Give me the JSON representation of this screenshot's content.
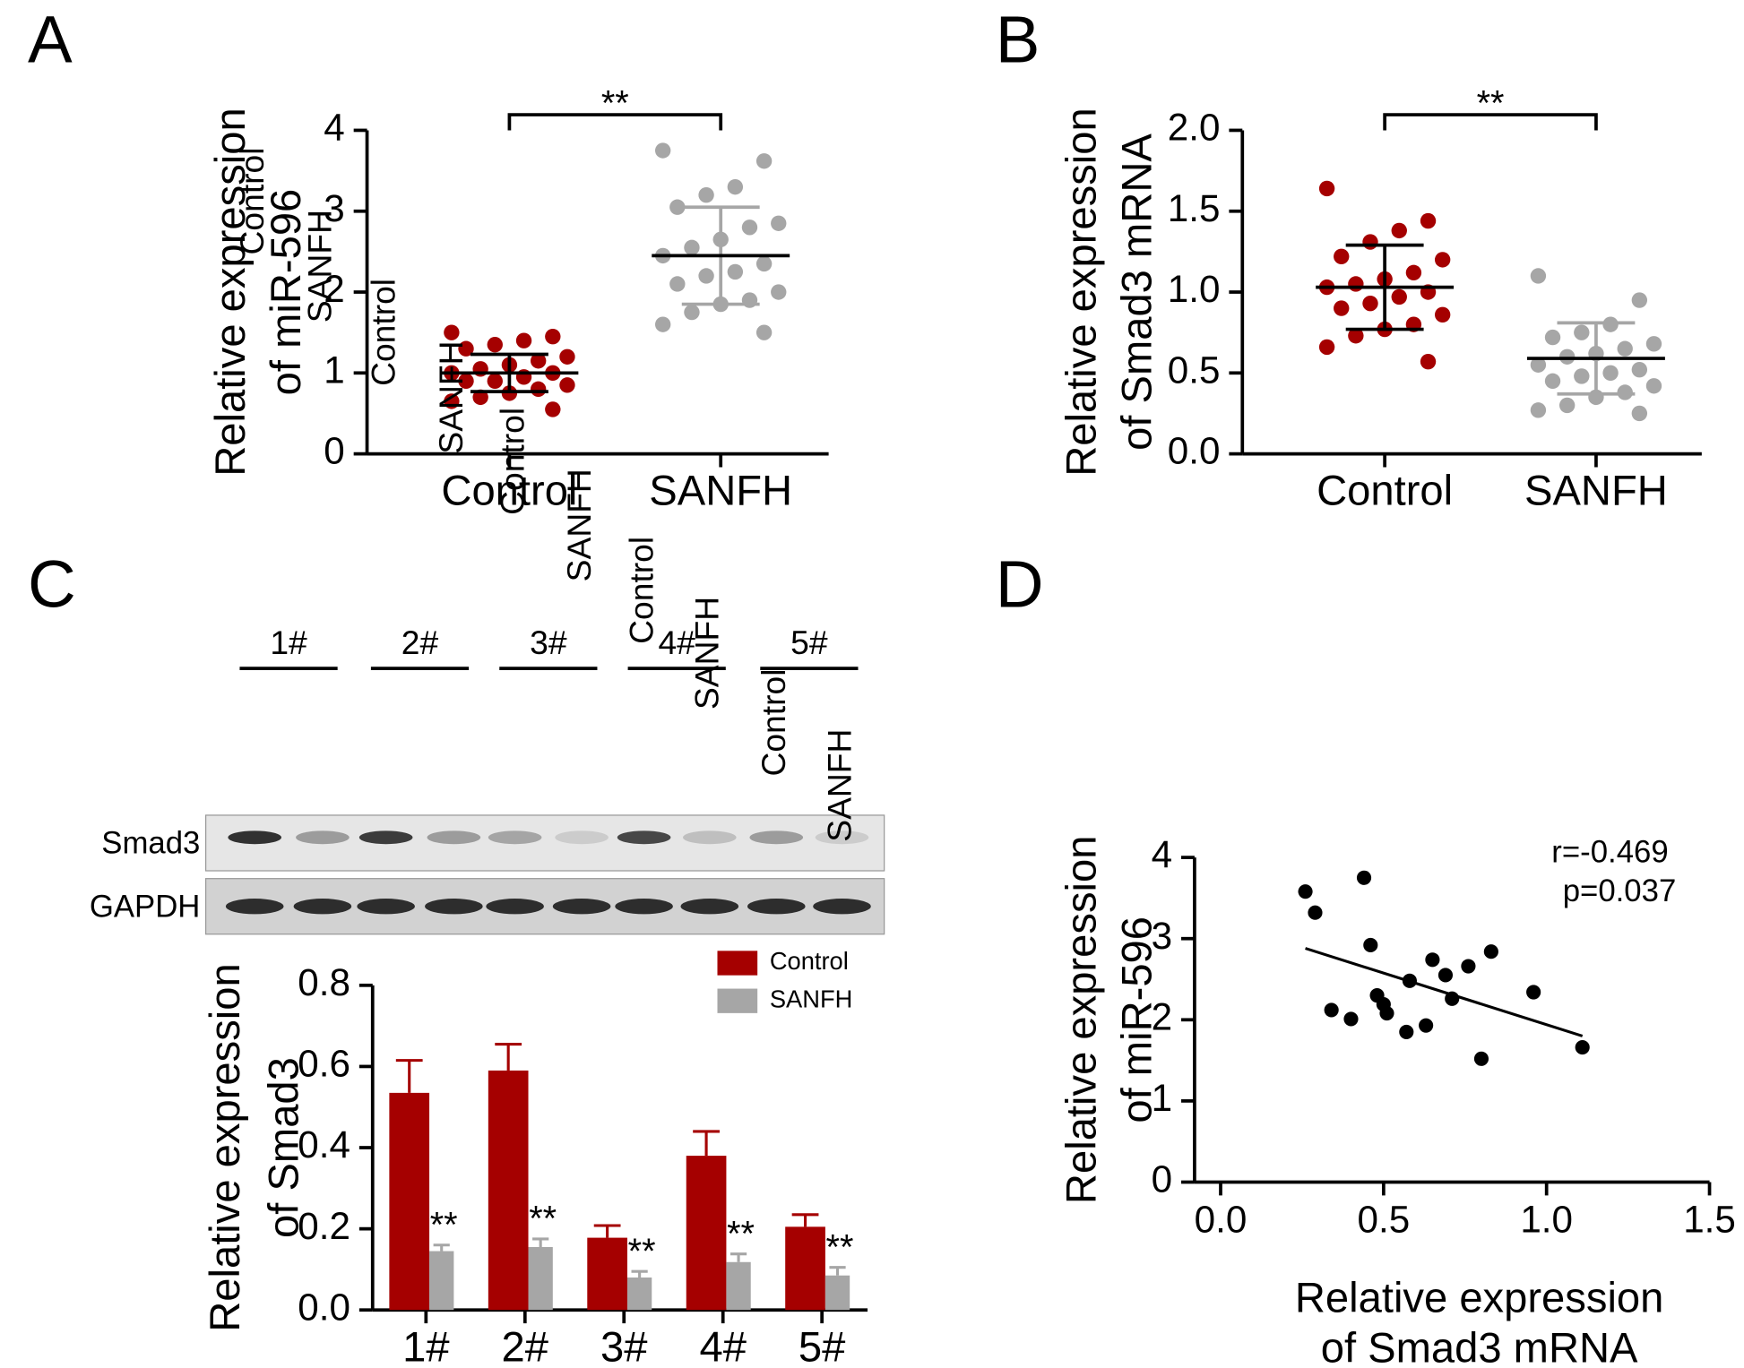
{
  "chart_data": [
    {
      "type": "dotplot",
      "panel": "A",
      "ylabel": [
        "Relative expression",
        "of miR-596"
      ],
      "ylim": [
        0,
        4
      ],
      "yticks": [
        0,
        1,
        2,
        3,
        4
      ],
      "significance": "**",
      "groups": [
        {
          "name": "Control",
          "color": "#a50000",
          "error_color": "#000000",
          "values": [
            1.5,
            1.45,
            1.4,
            1.35,
            1.3,
            1.2,
            1.15,
            1.1,
            1.05,
            1.0,
            1.0,
            0.95,
            0.9,
            0.9,
            0.85,
            0.8,
            0.75,
            0.7,
            0.65,
            0.55
          ],
          "mean": 1.0,
          "sd": 0.23
        },
        {
          "name": "SANFH",
          "color": "#a6a6a6",
          "error_color": "#a6a6a6",
          "values": [
            3.75,
            3.62,
            3.3,
            3.2,
            3.05,
            2.85,
            2.8,
            2.65,
            2.55,
            2.45,
            2.35,
            2.25,
            2.2,
            2.1,
            2.0,
            1.9,
            1.85,
            1.75,
            1.6,
            1.5
          ],
          "mean": 2.45,
          "sd": 0.6
        }
      ]
    },
    {
      "type": "dotplot",
      "panel": "B",
      "ylabel": [
        "Relative expression",
        "of Smad3 mRNA"
      ],
      "ylim": [
        0,
        2
      ],
      "yticks": [
        {
          "value": 0,
          "label": "0.0"
        },
        0.5,
        {
          "value": 1,
          "label": "1.0"
        },
        1.5,
        {
          "value": 2,
          "label": "2.0"
        }
      ],
      "significance": "**",
      "groups": [
        {
          "name": "Control",
          "color": "#a50000",
          "error_color": "#000000",
          "values": [
            1.64,
            1.44,
            1.38,
            1.31,
            1.22,
            1.2,
            1.12,
            1.08,
            1.05,
            1.03,
            1.0,
            0.97,
            0.93,
            0.9,
            0.86,
            0.8,
            0.77,
            0.73,
            0.66,
            0.57
          ],
          "mean": 1.03,
          "sd": 0.26
        },
        {
          "name": "SANFH",
          "color": "#a6a6a6",
          "error_color": "#a6a6a6",
          "values": [
            1.1,
            0.95,
            0.8,
            0.75,
            0.72,
            0.68,
            0.65,
            0.62,
            0.6,
            0.55,
            0.52,
            0.5,
            0.48,
            0.45,
            0.42,
            0.38,
            0.35,
            0.3,
            0.27,
            0.25
          ],
          "mean": 0.59,
          "sd": 0.22
        }
      ]
    },
    {
      "type": "bar",
      "panel": "C",
      "ylabel": [
        "Relative expression",
        "of Smad3"
      ],
      "categories": [
        "1#",
        "2#",
        "3#",
        "4#",
        "5#"
      ],
      "ylim": [
        0,
        0.8
      ],
      "yticks": [
        {
          "value": 0,
          "label": "0.0"
        },
        0.2,
        0.4,
        0.6,
        0.8
      ],
      "legend": "upper right",
      "series": [
        {
          "name": "Control",
          "color": "#a50000",
          "values": [
            0.535,
            0.59,
            0.178,
            0.38,
            0.205
          ],
          "errors": [
            0.08,
            0.065,
            0.03,
            0.06,
            0.03
          ]
        },
        {
          "name": "SANFH",
          "color": "#a6a6a6",
          "values": [
            0.145,
            0.155,
            0.08,
            0.118,
            0.085
          ],
          "errors": [
            0.015,
            0.02,
            0.015,
            0.02,
            0.02
          ],
          "annotations": [
            "**",
            "**",
            "**",
            "**",
            "**"
          ]
        }
      ]
    },
    {
      "type": "scatter",
      "panel": "D",
      "xlabel": [
        "Relative expression",
        "of Smad3 mRNA"
      ],
      "ylabel": [
        "Relative expression",
        "of miR-596"
      ],
      "x": [
        0.26,
        0.29,
        0.44,
        0.46,
        0.34,
        0.4,
        0.48,
        0.5,
        0.51,
        0.58,
        0.57,
        0.63,
        0.65,
        0.69,
        0.71,
        0.76,
        0.83,
        0.8,
        0.96,
        1.11
      ],
      "y": [
        3.58,
        3.32,
        3.75,
        2.92,
        2.12,
        2.01,
        2.3,
        2.19,
        2.08,
        2.48,
        1.85,
        1.93,
        2.74,
        2.55,
        2.26,
        2.66,
        2.84,
        1.52,
        2.34,
        1.66
      ],
      "color": "#000000",
      "xlim": [
        -0.08,
        1.5
      ],
      "xticks": [
        {
          "value": 0,
          "label": "0.0"
        },
        0.5,
        {
          "value": 1,
          "label": "1.0"
        },
        1.5
      ],
      "ylim": [
        0,
        4
      ],
      "yticks": [
        0,
        1,
        2,
        3,
        4
      ],
      "fit": {
        "x": [
          0.26,
          1.11
        ],
        "y": [
          2.88,
          1.8
        ]
      },
      "annotations": [
        "r=-0.469",
        "p=0.037"
      ]
    }
  ],
  "blot": {
    "groups": [
      {
        "label": "1#",
        "lanes": [
          "Control",
          "SANFH"
        ]
      },
      {
        "label": "2#",
        "lanes": [
          "Control",
          "SANFH"
        ]
      },
      {
        "label": "3#",
        "lanes": [
          "Control",
          "SANFH"
        ]
      },
      {
        "label": "4#",
        "lanes": [
          "Control",
          "SANFH"
        ]
      },
      {
        "label": "5#",
        "lanes": [
          "Control",
          "SANFH"
        ]
      }
    ],
    "rows": [
      "Smad3",
      "GAPDH"
    ]
  }
}
